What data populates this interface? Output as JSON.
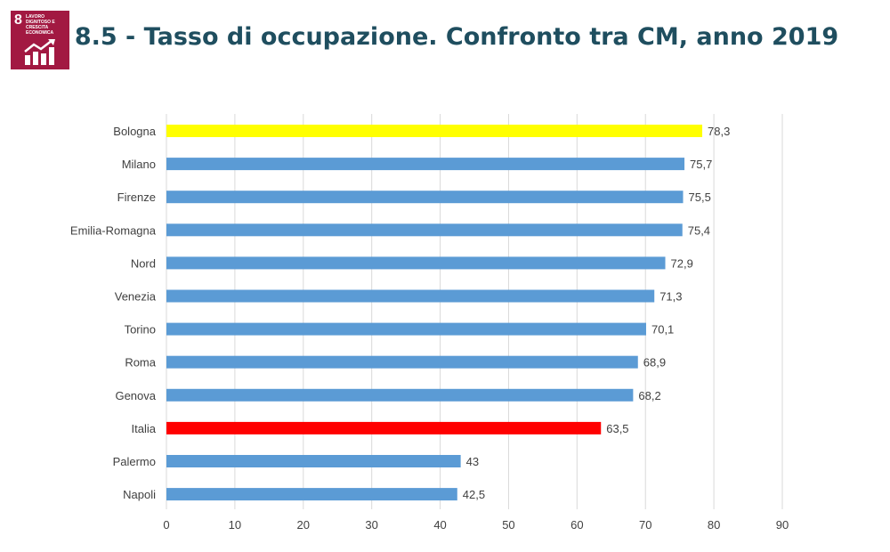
{
  "header": {
    "badge_number": "8",
    "badge_text": "LAVORO DIGNITOSO E CRESCITA ECONOMICA",
    "title": "8.5 - Tasso di occupazione. Confronto tra CM, anno 2019"
  },
  "colors": {
    "default_bar": "#5b9bd5",
    "highlight_bologna": "#ffff00",
    "highlight_italia": "#ff0000",
    "title": "#1f4e5f",
    "badge": "#a21942"
  },
  "chart_data": {
    "type": "bar",
    "orientation": "horizontal",
    "title": "8.5 - Tasso di occupazione. Confronto tra CM, anno 2019",
    "xlabel": "",
    "ylabel": "",
    "categories": [
      "Bologna",
      "Milano",
      "Firenze",
      "Emilia-Romagna",
      "Nord",
      "Venezia",
      "Torino",
      "Roma",
      "Genova",
      "Italia",
      "Palermo",
      "Napoli"
    ],
    "values": [
      78.3,
      75.7,
      75.5,
      75.4,
      72.9,
      71.3,
      70.1,
      68.9,
      68.2,
      63.5,
      43,
      42.5
    ],
    "value_labels": [
      "78,3",
      "75,7",
      "75,5",
      "75,4",
      "72,9",
      "71,3",
      "70,1",
      "68,9",
      "68,2",
      "63,5",
      "43",
      "42,5"
    ],
    "bar_colors": [
      "#ffff00",
      "#5b9bd5",
      "#5b9bd5",
      "#5b9bd5",
      "#5b9bd5",
      "#5b9bd5",
      "#5b9bd5",
      "#5b9bd5",
      "#5b9bd5",
      "#ff0000",
      "#5b9bd5",
      "#5b9bd5"
    ],
    "xlim": [
      0,
      90
    ],
    "xticks": [
      0,
      10,
      20,
      30,
      40,
      50,
      60,
      70,
      80,
      90
    ],
    "grid": true,
    "legend": "none"
  }
}
